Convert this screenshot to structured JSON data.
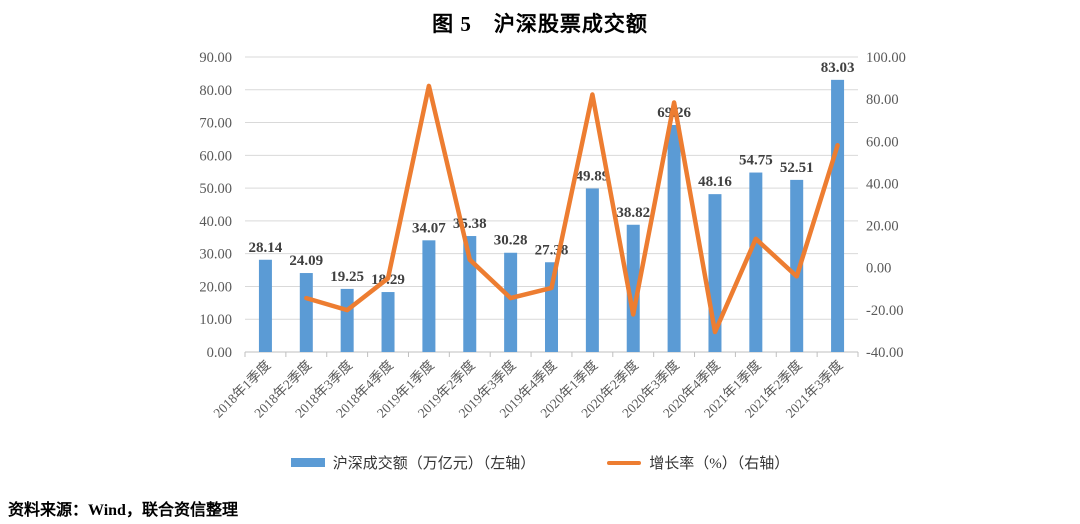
{
  "title": "图 5　沪深股票成交额",
  "source": "资料来源：Wind，联合资信整理",
  "legend": [
    {
      "label": "沪深成交额（万亿元）（左轴）",
      "swatch": "bar-swatch"
    },
    {
      "label": "增长率（%）（右轴）",
      "swatch": "line-swatch"
    }
  ],
  "colors": {
    "bar": "#5B9BD5",
    "line": "#ED7D31",
    "grid": "#D9D9D9",
    "axis": "#BFBFBF",
    "tick_text": "#595959",
    "bar_label_text": "#404040"
  },
  "chart_data": {
    "type": "bar+line",
    "title": "图 5　沪深股票成交额",
    "categories": [
      "2018年1季度",
      "2018年2季度",
      "2018年3季度",
      "2018年4季度",
      "2019年1季度",
      "2019年2季度",
      "2019年3季度",
      "2019年4季度",
      "2020年1季度",
      "2020年2季度",
      "2020年3季度",
      "2020年4季度",
      "2021年1季度",
      "2021年2季度",
      "2021年3季度"
    ],
    "series": [
      {
        "name": "沪深成交额（万亿元）（左轴）",
        "type": "bar",
        "axis": "left",
        "values": [
          28.14,
          24.09,
          19.25,
          18.29,
          34.07,
          35.38,
          30.28,
          27.38,
          49.89,
          38.82,
          69.26,
          48.16,
          54.75,
          52.51,
          83.03
        ]
      },
      {
        "name": "增长率（%）（右轴）",
        "type": "line",
        "axis": "right",
        "values": [
          null,
          -14.4,
          -20.1,
          -5.0,
          86.3,
          3.8,
          -14.4,
          -9.6,
          82.2,
          -22.2,
          78.4,
          -30.5,
          13.7,
          -4.1,
          58.1
        ]
      }
    ],
    "left_axis": {
      "min": 0,
      "max": 90,
      "step": 10,
      "ticks": [
        "90.00",
        "80.00",
        "70.00",
        "60.00",
        "50.00",
        "40.00",
        "30.00",
        "20.00",
        "10.00",
        "0.00"
      ]
    },
    "right_axis": {
      "min": -40,
      "max": 100,
      "step": 20,
      "ticks": [
        "100.00",
        "80.00",
        "60.00",
        "40.00",
        "20.00",
        "0.00",
        "-20.00",
        "-40.00"
      ]
    },
    "grid": true,
    "legend_position": "bottom",
    "data_labels_on_bars": true
  }
}
